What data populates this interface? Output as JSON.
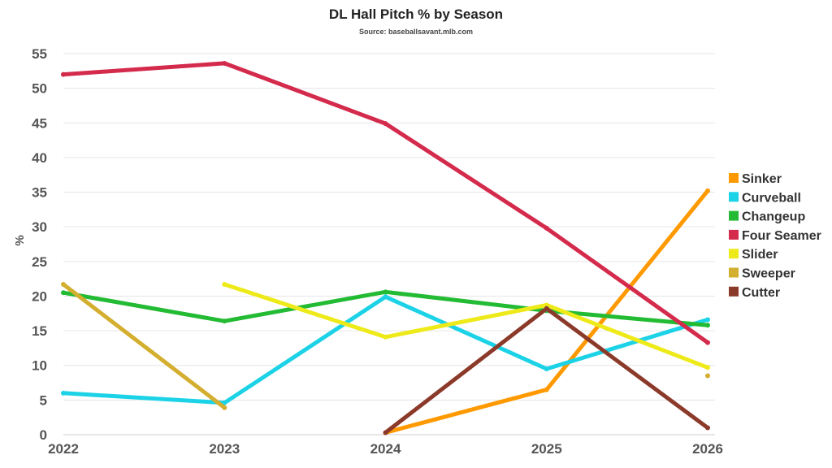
{
  "chart_data": {
    "type": "line",
    "title": "DL Hall Pitch % by Season",
    "subtitle": "Source: baseballsavant.mlb.com",
    "xlabel": "",
    "ylabel": "%",
    "x": [
      "2022",
      "2023",
      "2024",
      "2025",
      "2026"
    ],
    "ylim": [
      0,
      55
    ],
    "yticks": [
      0,
      5,
      10,
      15,
      20,
      25,
      30,
      35,
      40,
      45,
      50,
      55
    ],
    "grid": true,
    "legend_position": "right",
    "series": [
      {
        "name": "Sinker",
        "color": "#ff9900",
        "values": [
          null,
          null,
          0.3,
          6.5,
          35.2
        ]
      },
      {
        "name": "Curveball",
        "color": "#1cd2e6",
        "values": [
          6.0,
          4.6,
          19.9,
          9.5,
          16.6
        ]
      },
      {
        "name": "Changeup",
        "color": "#22bb33",
        "values": [
          20.5,
          16.4,
          20.6,
          17.9,
          15.8
        ]
      },
      {
        "name": "Four Seamer",
        "color": "#d42a4c",
        "values": [
          52.0,
          53.6,
          44.9,
          29.8,
          13.3
        ]
      },
      {
        "name": "Slider",
        "color": "#eeea1a",
        "values": [
          null,
          21.7,
          14.1,
          18.7,
          9.7
        ]
      },
      {
        "name": "Sweeper",
        "color": "#d4ae2e",
        "values": [
          21.7,
          3.9,
          null,
          null,
          8.5
        ]
      },
      {
        "name": "Cutter",
        "color": "#8b3a2a",
        "values": [
          null,
          null,
          0.3,
          18.2,
          1.0
        ]
      }
    ]
  }
}
